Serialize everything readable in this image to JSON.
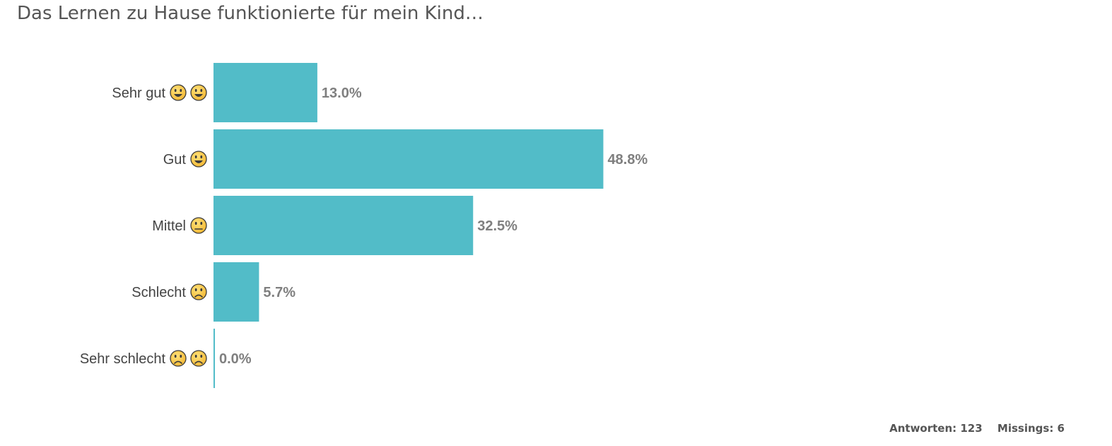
{
  "chart_data": {
    "type": "bar",
    "orientation": "horizontal",
    "title": "Das Lernen zu Hause funktionierte für mein Kind…",
    "categories": [
      "Sehr gut",
      "Gut",
      "Mittel",
      "Schlecht",
      "Sehr schlecht"
    ],
    "category_icons": [
      [
        "happy-face-icon",
        "happy-face-icon"
      ],
      [
        "happy-face-icon"
      ],
      [
        "neutral-face-icon"
      ],
      [
        "sad-face-icon"
      ],
      [
        "sad-face-icon",
        "sad-face-icon"
      ]
    ],
    "values": [
      13.0,
      48.8,
      32.5,
      5.7,
      0.0
    ],
    "value_labels": [
      "13.0%",
      "48.8%",
      "32.5%",
      "5.7%",
      "0.0%"
    ],
    "xlim": [
      0,
      100
    ],
    "grid": false,
    "bar_color": "#52bcc8",
    "value_label_color": "#7f7f7f"
  },
  "footer": {
    "responses": "Antworten: 123",
    "missings": "Missings: 6"
  }
}
